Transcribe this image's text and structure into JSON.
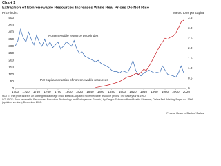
{
  "chart_data": {
    "type": "line",
    "label": "Chart 1",
    "title": "Extraction of Nonrenewable Resources Increases While Real Prices Do Not Rise",
    "ylabel": "Price index",
    "y2label": "Metric tons per capita",
    "note": "NOTE: The price index is an unweighted average of 65 inflation-adjusted nonrenewable resource prices. The base year is 1990.",
    "source": "SOURCE: \"Non-renewable Resources, Extraction Technology and Endogenous Growth,\" by Gregor Schwerhoff and Martin Stuermer, Dallas Fed Working Paper no. 1506 (updated version), December 2015.",
    "credit": "Federal Reserve Bank of Dallas",
    "grid": false,
    "x": [
      1700,
      1705,
      1710,
      1715,
      1720,
      1725,
      1730,
      1735,
      1740,
      1745,
      1750,
      1755,
      1760,
      1765,
      1770,
      1775,
      1780,
      1785,
      1790,
      1795,
      1800,
      1805,
      1810,
      1815,
      1820,
      1825,
      1830,
      1835,
      1840,
      1845,
      1850,
      1855,
      1860,
      1865,
      1870,
      1875,
      1880,
      1885,
      1890,
      1895,
      1900,
      1905,
      1910,
      1915,
      1920,
      1925,
      1930,
      1935,
      1940,
      1945,
      1950,
      1955,
      1960,
      1965,
      1970,
      1975,
      1980,
      1985,
      1990,
      1995,
      2000,
      2005,
      2010,
      2015
    ],
    "xlim": [
      1700,
      2020
    ],
    "xticks": [
      1700,
      1720,
      1740,
      1760,
      1780,
      1800,
      1820,
      1840,
      1860,
      1880,
      1900,
      1920,
      1940,
      1960,
      1980,
      2000,
      2020
    ],
    "ylim": [
      0,
      500
    ],
    "yticks": [
      0,
      50,
      100,
      150,
      200,
      250,
      300,
      350,
      400,
      450,
      500
    ],
    "y2lim": [
      0,
      3.5
    ],
    "y2ticks": [
      0,
      0.5,
      {
        "value": 1,
        "label": "1.0"
      },
      1.5,
      {
        "value": 2,
        "label": "2.0"
      },
      2.5,
      {
        "value": 3,
        "label": "3.0"
      },
      3.5
    ],
    "series": [
      {
        "name": "Nonrenewable resource price index",
        "color": "#3a6db5",
        "values": [
          300,
          340,
          420,
          360,
          330,
          400,
          350,
          310,
          380,
          330,
          300,
          350,
          300,
          330,
          290,
          310,
          330,
          280,
          300,
          330,
          320,
          300,
          340,
          280,
          250,
          260,
          230,
          220,
          210,
          200,
          190,
          200,
          180,
          170,
          160,
          150,
          130,
          120,
          120,
          110,
          125,
          120,
          110,
          150,
          200,
          130,
          100,
          90,
          110,
          120,
          130,
          120,
          110,
          115,
          110,
          160,
          130,
          100,
          95,
          90,
          80,
          110,
          160,
          110
        ]
      },
      {
        "name": "Per capita extraction of nonrenewable resources",
        "color": "#c8171e",
        "axis": "y2",
        "values": [
          null,
          null,
          null,
          null,
          null,
          null,
          null,
          null,
          null,
          null,
          null,
          null,
          null,
          null,
          null,
          null,
          null,
          null,
          null,
          null,
          null,
          null,
          null,
          null,
          null,
          null,
          null,
          null,
          null,
          null,
          0.05,
          0.07,
          0.1,
          0.12,
          0.15,
          0.18,
          0.22,
          0.26,
          0.3,
          0.35,
          0.42,
          0.5,
          0.58,
          0.6,
          0.65,
          0.75,
          0.7,
          0.8,
          0.95,
          0.9,
          1.1,
          1.35,
          1.6,
          1.85,
          2.1,
          2.3,
          2.5,
          2.45,
          2.55,
          2.6,
          2.75,
          3.0,
          3.3,
          3.4
        ]
      }
    ]
  }
}
